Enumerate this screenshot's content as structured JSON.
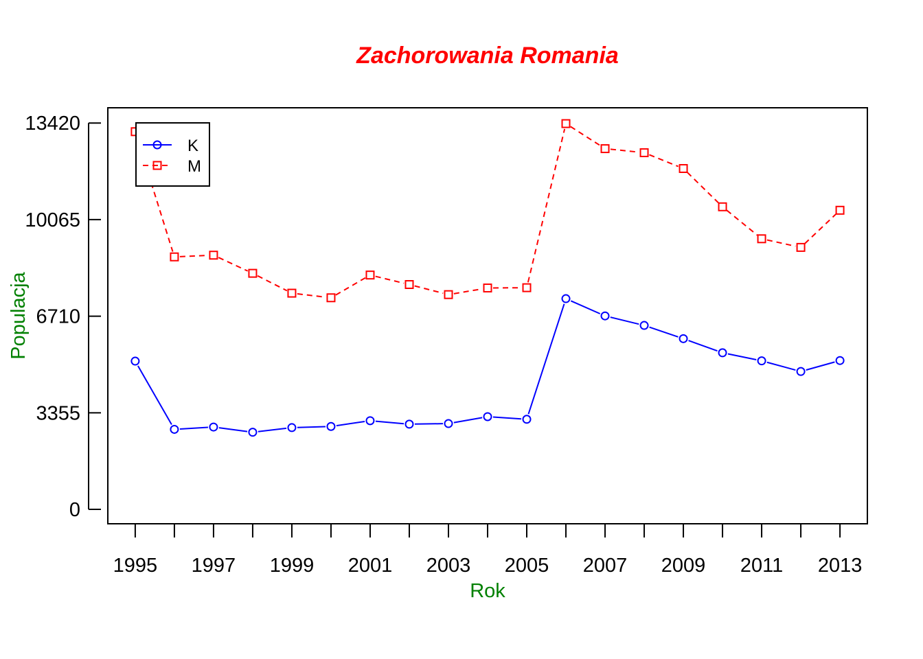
{
  "colors": {
    "title": "#ff0000",
    "axis_label": "#008000",
    "K": "#0000ff",
    "M": "#ff0000"
  },
  "chart_data": {
    "type": "line",
    "title": "Zachorowania Romania",
    "xlabel": "Rok",
    "ylabel": "Populacja",
    "x": [
      1995,
      1996,
      1997,
      1998,
      1999,
      2000,
      2001,
      2002,
      2003,
      2004,
      2005,
      2006,
      2007,
      2008,
      2009,
      2010,
      2011,
      2012,
      2013
    ],
    "x_tick_labels": [
      "1995",
      "1997",
      "1999",
      "2001",
      "2003",
      "2005",
      "2007",
      "2009",
      "2011",
      "2013"
    ],
    "y_tick_labels": [
      "0",
      "3355",
      "6710",
      "10065",
      "13420"
    ],
    "ylim": [
      -500,
      13950
    ],
    "xlim": [
      1994.3,
      2013.7
    ],
    "grid": false,
    "legend_position": "top-left",
    "series": [
      {
        "name": "K",
        "color": "#0000ff",
        "line_style": "solid",
        "marker": "circle",
        "values": [
          5150,
          2780,
          2860,
          2680,
          2840,
          2880,
          3080,
          2960,
          2980,
          3220,
          3130,
          7320,
          6720,
          6390,
          5930,
          5440,
          5160,
          4790,
          5170
        ]
      },
      {
        "name": "M",
        "color": "#ff0000",
        "line_style": "dashed",
        "marker": "square",
        "values": [
          13120,
          8770,
          8830,
          8200,
          7510,
          7350,
          8140,
          7810,
          7460,
          7690,
          7700,
          13400,
          12530,
          12390,
          11840,
          10510,
          9400,
          9100,
          10390
        ]
      }
    ]
  }
}
